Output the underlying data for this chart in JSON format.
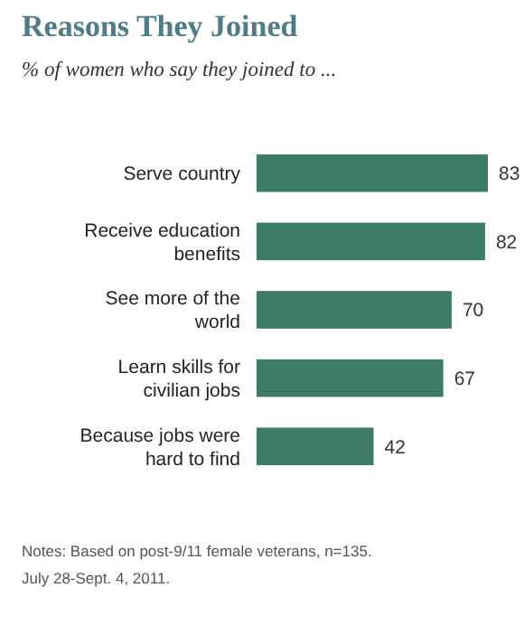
{
  "chart_data": {
    "type": "bar",
    "orientation": "horizontal",
    "title": "Reasons They Joined",
    "subtitle": "% of women who say they joined to ...",
    "categories": [
      "Serve country",
      "Receive education benefits",
      "See more of the world",
      "Learn skills for civilian jobs",
      "Because jobs were hard to find"
    ],
    "values": [
      83,
      82,
      70,
      67,
      42
    ],
    "color": "#3d7a68",
    "data_labels": true,
    "tick_labels": "y",
    "annotations": [
      "Notes: Based on post-9/11 female veterans, n=135.",
      "July 28-Sept. 4, 2011."
    ]
  }
}
